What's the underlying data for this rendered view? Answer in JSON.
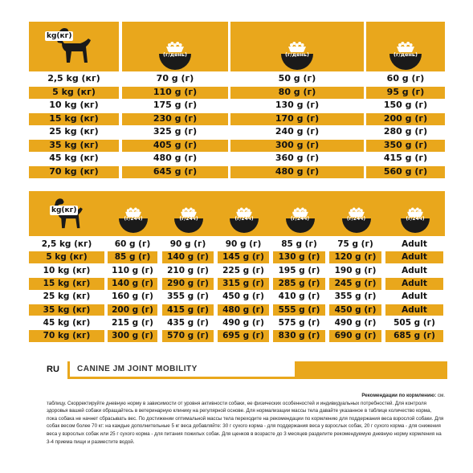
{
  "colors": {
    "accent": "#e9a71c",
    "dark": "#1a1a1a",
    "text": "#111111"
  },
  "table1": {
    "weight_header": "kg(кг)",
    "columns": [
      {
        "icon": "food-bowl-icon",
        "label_line1": "g/day",
        "label_line2": "(г/день)"
      },
      {
        "icon": "food-bowl-icon",
        "label_line1": "g/day",
        "label_line2": "(г/день)"
      },
      {
        "icon": "food-bowl-icon",
        "label_line1": "g/day",
        "label_line2": "(г/день)"
      }
    ],
    "rows": [
      {
        "weight": "2,5 kg  (кг)",
        "v": [
          "70 g (г)",
          "50 g (г)",
          "60 g (г)"
        ]
      },
      {
        "weight": "5 kg  (кг)",
        "v": [
          "110 g (г)",
          "80 g (г)",
          "95 g (г)"
        ]
      },
      {
        "weight": "10 kg  (кг)",
        "v": [
          "175 g (г)",
          "130 g (г)",
          "150 g (г)"
        ]
      },
      {
        "weight": "15 kg  (кг)",
        "v": [
          "230 g (г)",
          "170 g (г)",
          "200 g (г)"
        ]
      },
      {
        "weight": "25 kg  (кг)",
        "v": [
          "325 g (г)",
          "240 g (г)",
          "280 g (г)"
        ]
      },
      {
        "weight": "35 kg  (кг)",
        "v": [
          "405 g (г)",
          "300 g (г)",
          "350 g (г)"
        ]
      },
      {
        "weight": "45 kg  (кг)",
        "v": [
          "480 g (г)",
          "360 g (г)",
          "415 g (г)"
        ]
      },
      {
        "weight": "70 kg  (кг)",
        "v": [
          "645 g (г)",
          "480 g (г)",
          "560 g (г)"
        ]
      }
    ]
  },
  "table2": {
    "weight_header": "kg(кг)",
    "columns": [
      {
        "icon": "food-bowl-icon",
        "label_line1": "g/24h",
        "label_line2": "(г/24ч)"
      },
      {
        "icon": "food-bowl-icon",
        "label_line1": "g/24h",
        "label_line2": "(г/24ч)"
      },
      {
        "icon": "food-bowl-icon",
        "label_line1": "g/24h",
        "label_line2": "(г/24ч)"
      },
      {
        "icon": "food-bowl-icon",
        "label_line1": "g/24h",
        "label_line2": "(г/24ч)"
      },
      {
        "icon": "food-bowl-icon",
        "label_line1": "g/24h",
        "label_line2": "(г/24ч)"
      },
      {
        "icon": "food-bowl-icon",
        "label_line1": "g/24h",
        "label_line2": "(г/24ч)"
      }
    ],
    "rows": [
      {
        "weight": "2,5 kg  (кг)",
        "v": [
          "60 g (г)",
          "90 g (г)",
          "90 g (г)",
          "85 g (г)",
          "75 g (г)",
          "Adult"
        ]
      },
      {
        "weight": "5 kg  (кг)",
        "v": [
          "85 g (г)",
          "140 g (г)",
          "145 g (г)",
          "130 g (г)",
          "120 g (г)",
          "Adult"
        ]
      },
      {
        "weight": "10 kg  (кг)",
        "v": [
          "110 g (г)",
          "210 g (г)",
          "225 g (г)",
          "195 g (г)",
          "190 g (г)",
          "Adult"
        ]
      },
      {
        "weight": "15 kg  (кг)",
        "v": [
          "140 g (г)",
          "290 g (г)",
          "315 g (г)",
          "285 g (г)",
          "245 g (г)",
          "Adult"
        ]
      },
      {
        "weight": "25 kg  (кг)",
        "v": [
          "160 g (г)",
          "355 g (г)",
          "450 g (г)",
          "410 g (г)",
          "355 g (г)",
          "Adult"
        ]
      },
      {
        "weight": "35 kg  (кг)",
        "v": [
          "200 g (г)",
          "415 g (г)",
          "480 g (г)",
          "555 g (г)",
          "450 g (г)",
          "Adult"
        ]
      },
      {
        "weight": "45 kg  (кг)",
        "v": [
          "215 g (г)",
          "435 g (г)",
          "490 g (г)",
          "575 g (г)",
          "490 g (г)",
          "505 g (г)"
        ]
      },
      {
        "weight": "70 kg  (кг)",
        "v": [
          "300 g (г)",
          "570 g (г)",
          "695 g (г)",
          "830 g (г)",
          "690 g (г)",
          "685 g (г)"
        ]
      }
    ]
  },
  "product": {
    "lang": "RU",
    "name": "CANINE JM JOINT MOBILITY"
  },
  "notes": {
    "heading": "Рекомендации по кормлению:",
    "heading_tail": " см.",
    "lines": [
      "таблицу. Скорректируйте дневную норму в зависимости от уровня активности собаки, ее физических особенностей и индивидуальных потребностей. Для контроля",
      "здоровья вашей собаки обращайтесь в ветеринарную клинику на регулярной основе. Для нормализации массы тела давайте указанное в таблице количество корма,",
      "пока собака не начнет сбрасывать вес. По достижении оптимальной массы тела переходите на рекомендации по кормлению для поддержания веса взрослой собаки. Для",
      "собак весом более 70 кг: на каждые дополнительные 5 кг веса добавляйте: 30 г сухого корма - для поддержания веса у взрослых собак, 20 г сухого корма - для снижения",
      "веса у взрослых собак или 25 г сухого корма - для питания пожилых собак. Для щенков в возрасте до 3 месяцев разделите рекомендуемую дневную норму кормления на",
      "3-4 приема пищи и разместите водой."
    ]
  }
}
